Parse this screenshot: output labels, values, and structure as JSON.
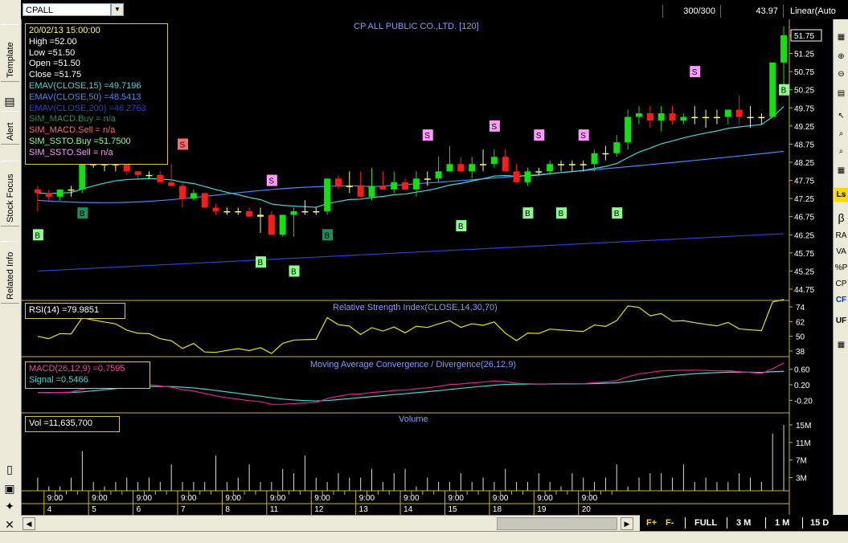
{
  "top": {
    "symbol": "CPALL",
    "bars": "300/300",
    "last": "43.97",
    "scale_mode": "Linear(Auto"
  },
  "left_tabs": [
    "Template",
    "Alert",
    "Stock Focus",
    "Related Info"
  ],
  "right_tools": [
    "Ls",
    "β",
    "RA",
    "VA",
    "%P",
    "CP",
    "CF",
    "UF"
  ],
  "main": {
    "title": "CP ALL PUBLIC CO.,LTD. [120]",
    "info": {
      "datetime": "20/02/13 15:00:00",
      "high": "High  =52.00",
      "low": "Low  =51.50",
      "open": "Open  =51.50",
      "close": "Close  =51.75",
      "indicators": [
        {
          "text": "EMAV(CLOSE,15)   =49.7196",
          "color": "#3fd9d9"
        },
        {
          "text": "EMAV(CLOSE,50)   =48.5413",
          "color": "#3f8bff"
        },
        {
          "text": "EMAV(CLOSE,200)  =46.2763",
          "color": "#2a3fd9"
        },
        {
          "text": "SIM_MACD.Buy    = n/a",
          "color": "#1f8f5a"
        },
        {
          "text": "SIM_MACD.Sell   = n/a",
          "color": "#ff6a6a"
        },
        {
          "text": "SIM_SSTO.Buy    =51.7500",
          "color": "#8cff8c"
        },
        {
          "text": "SIM_SSTO.Sell   = n/a",
          "color": "#ff9cff"
        }
      ]
    },
    "price_labels": [
      "51.75",
      "51.25",
      "50.75",
      "50.25",
      "49.75",
      "49.25",
      "48.75",
      "48.25",
      "47.75",
      "47.25",
      "46.75",
      "46.25",
      "45.75",
      "45.25",
      "44.75"
    ],
    "last_price_tag": "51.75"
  },
  "rsi": {
    "info": "RSI(14)   =79.9851",
    "title": "Relative Strength Index(CLOSE,14,30,70)",
    "labels": [
      "74",
      "62",
      "50",
      "38"
    ]
  },
  "macd": {
    "info_macd": "MACD(26,12,9)   =0.7595",
    "info_signal": "Signal   =0.5466",
    "title": "Moving Average Convergence / Divergence(26,12,9)",
    "labels": [
      "0.60",
      "0.20",
      "-0.20"
    ]
  },
  "volume": {
    "info": "Vol   =11,635,700",
    "title": "Volume",
    "labels": [
      "15M",
      "11M",
      "7M",
      "3M"
    ]
  },
  "xaxis": {
    "time_label": "9:00",
    "days": [
      "4",
      "5",
      "6",
      "7",
      "8",
      "11",
      "12",
      "13",
      "14",
      "15",
      "18",
      "19",
      "20"
    ]
  },
  "signals": {
    "buy": "B",
    "sell": "S"
  },
  "period_bar": {
    "f_plus": "F+",
    "f_minus": "F-",
    "full": "FULL",
    "three_m": "3 M",
    "one_m": "1 M",
    "fifteen_d": "15 D"
  },
  "colors": {
    "up": "#11e011",
    "down": "#ff1a1a",
    "doji": "#ffff66",
    "ema15": "#3fd9d9",
    "ema50": "#3f8bff",
    "ema200": "#2a3fd9",
    "rsi": "#e6e600",
    "macd": "#e0208f",
    "signal": "#3fd9d9",
    "grid": "#c8b432",
    "volume": "#e0e0c0"
  }
}
